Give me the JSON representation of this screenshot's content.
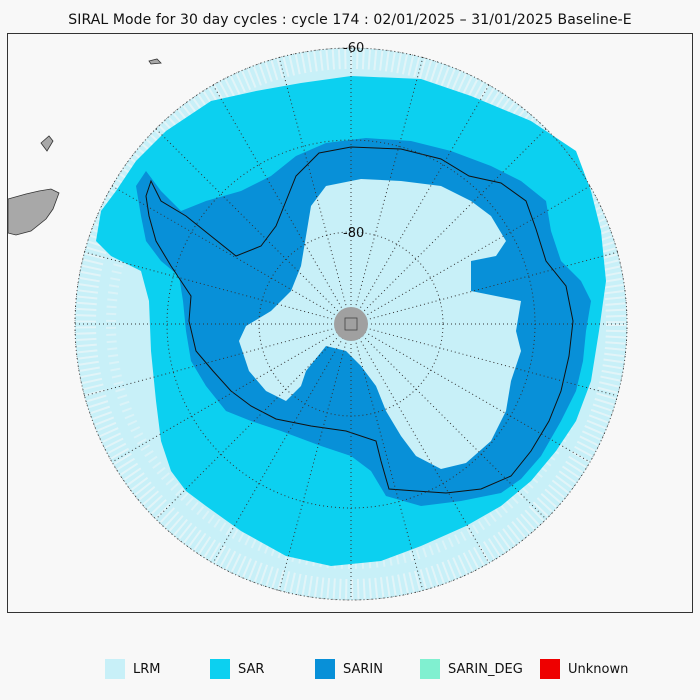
{
  "title": "SIRAL Mode for 30 day cycles : cycle 174 : 02/01/2025 – 31/01/2025 Baseline-E",
  "map": {
    "projection": "south-polar-stereographic",
    "latitude_labels": [
      "-60",
      "-80"
    ]
  },
  "legend": {
    "items": [
      {
        "label": "LRM",
        "color": "#c8f0f8"
      },
      {
        "label": "SAR",
        "color": "#0cd0f0"
      },
      {
        "label": "SARIN",
        "color": "#0890d8"
      },
      {
        "label": "SARIN_DEG",
        "color": "#80f0d0"
      },
      {
        "label": "Unknown",
        "color": "#ee0000"
      }
    ]
  },
  "colors": {
    "lrm": "#c8f0f8",
    "sar": "#0cd0f0",
    "sarin": "#0890d8",
    "land": "#a8a8a8",
    "pole_hole": "#a0a0a0",
    "background": "#f8f8f8",
    "graticule": "#333333"
  }
}
